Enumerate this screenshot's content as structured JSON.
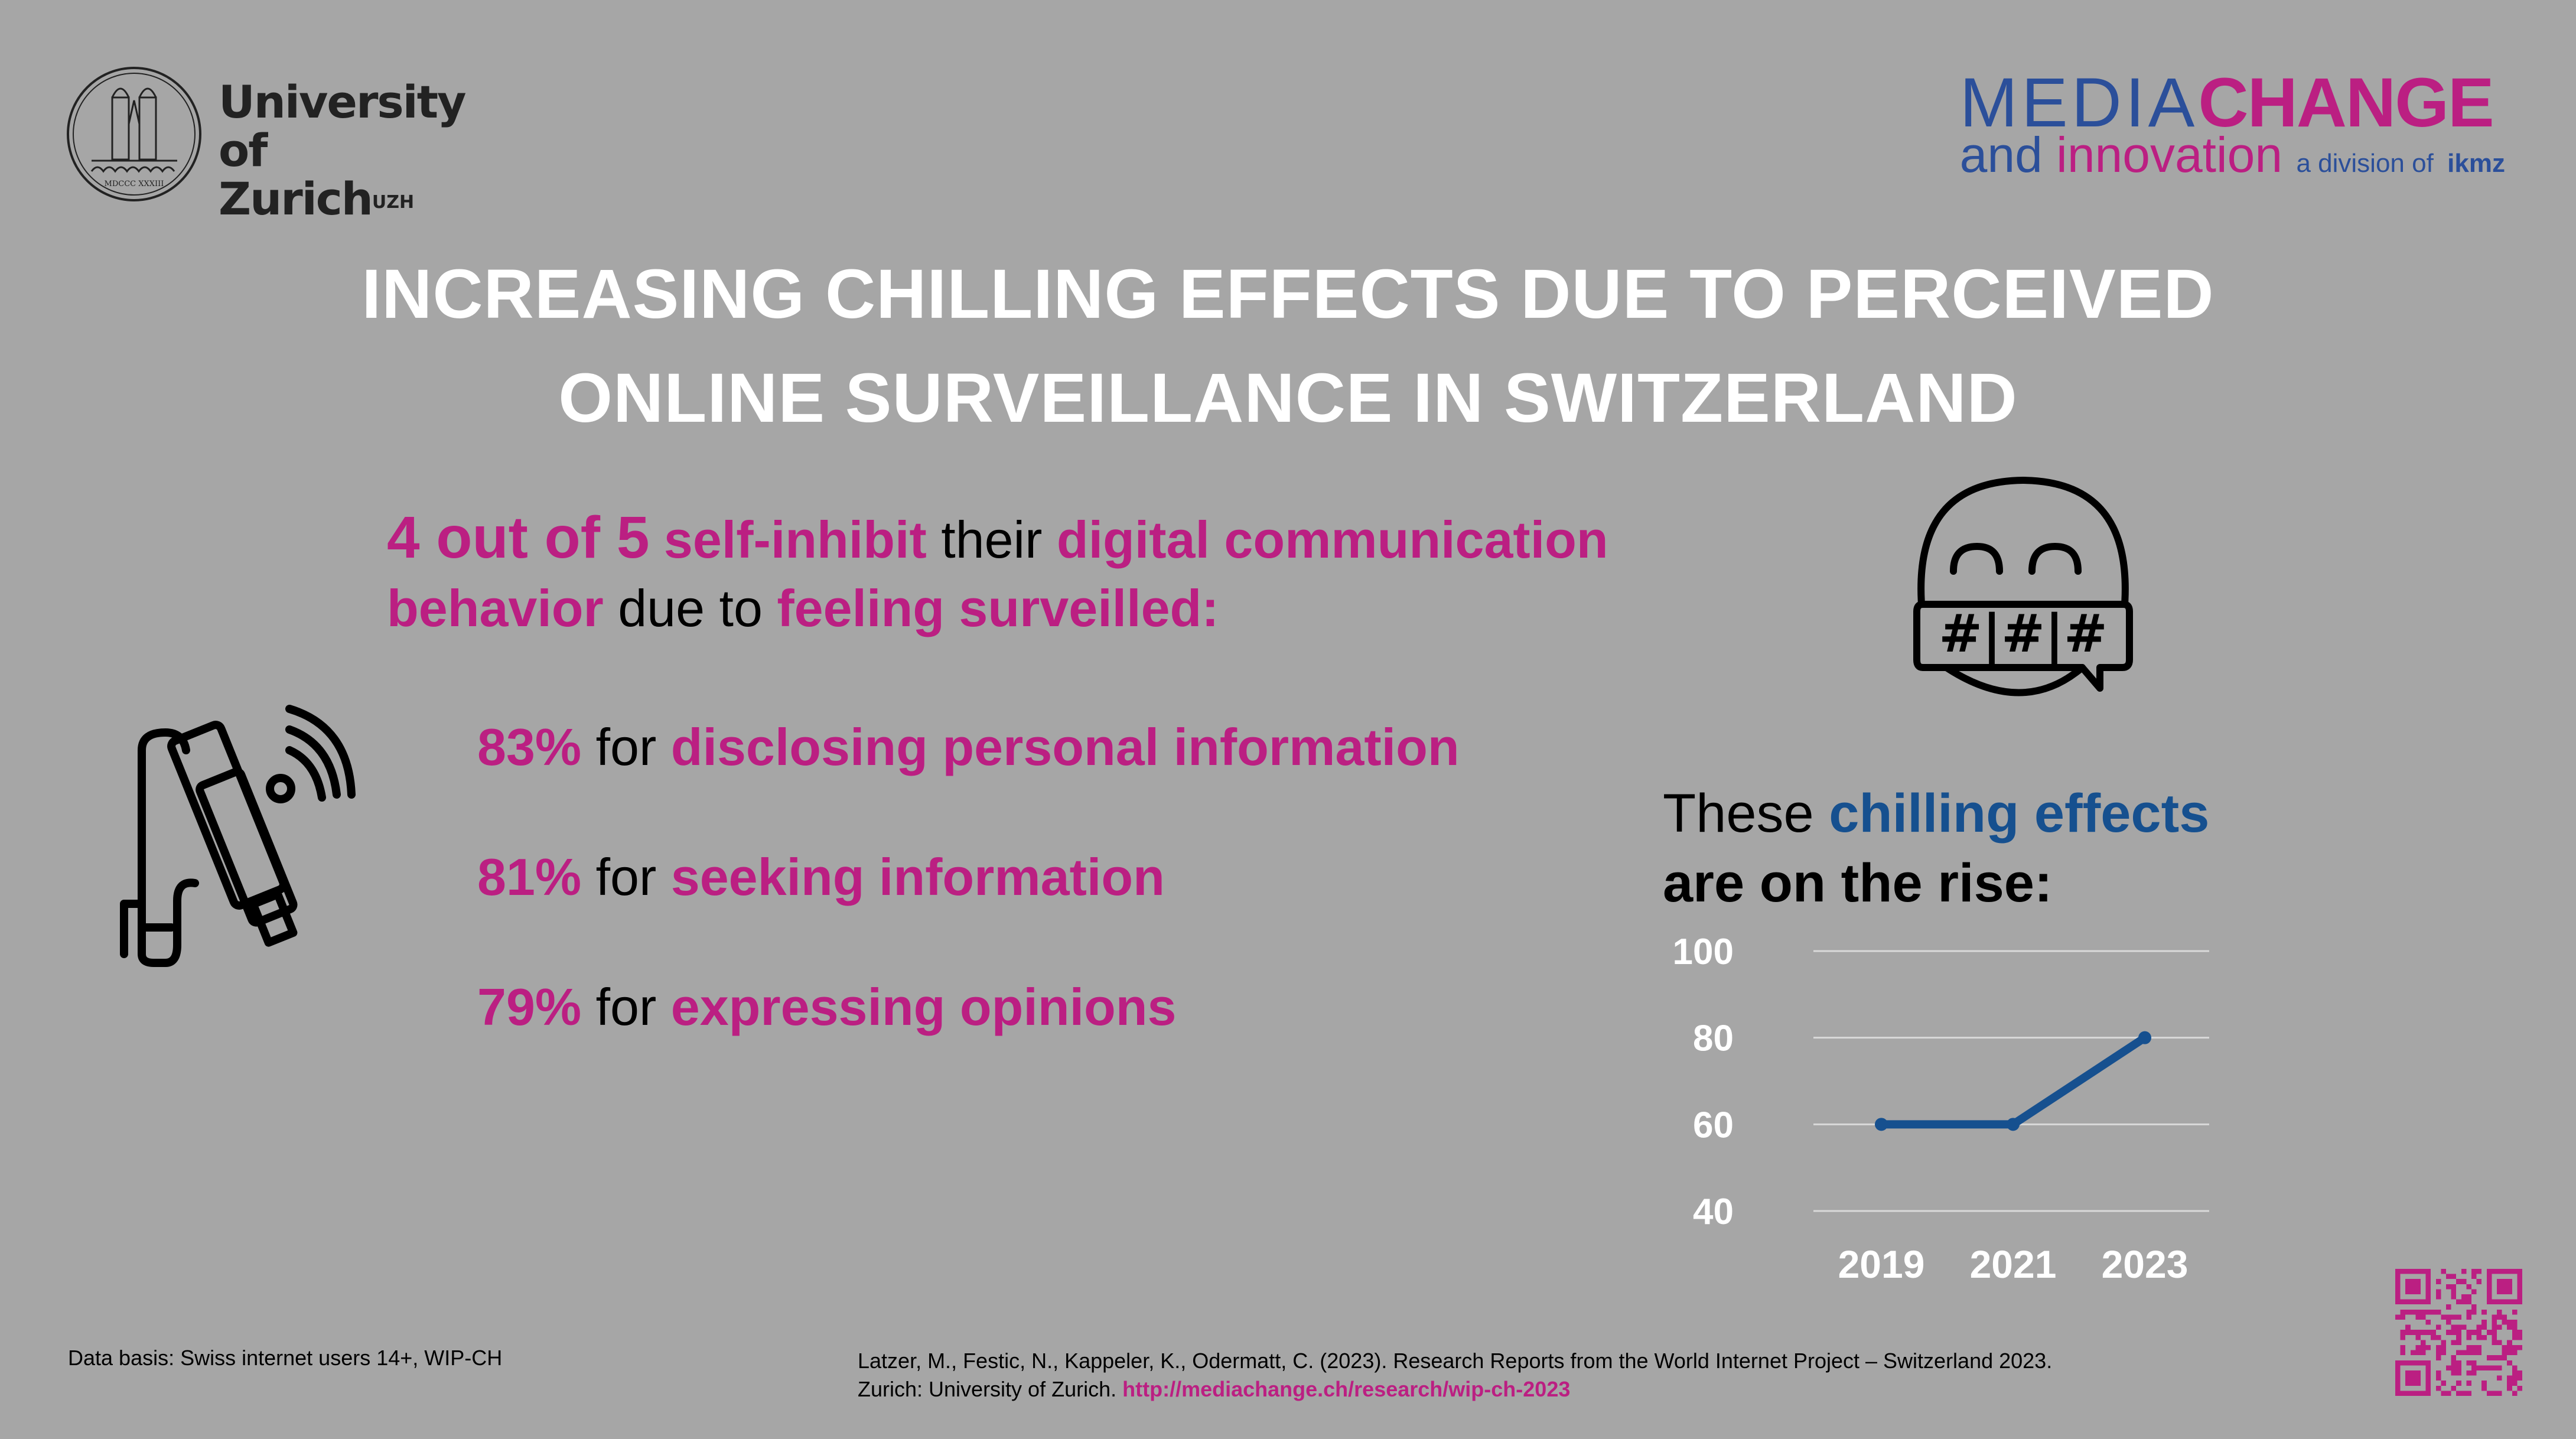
{
  "colors": {
    "background": "#a6a6a6",
    "magenta": "#bb1f82",
    "blue": "#16508f",
    "logo_blue": "#2b4f9a",
    "white": "#ffffff",
    "black": "#000000"
  },
  "logos": {
    "uzh": {
      "line1": "University of",
      "line2": "Zurich",
      "superscript": "UZH",
      "seal_icon": "university-seal-icon"
    },
    "mediachange": {
      "media": "MEDIA",
      "change": "CHANGE",
      "and": "and",
      "innovation": "innovation",
      "division": "a division of",
      "ikmz": "ikmz"
    }
  },
  "title": {
    "line1": "INCREASING CHILLING EFFECTS DUE TO PERCEIVED",
    "line2": "ONLINE SURVEILLANCE IN SWITZERLAND"
  },
  "headline": {
    "count": "4 out of 5",
    "verb": "self-inhibit",
    "their": "their",
    "object": "digital communication",
    "behavior": "behavior",
    "due_to": "due to",
    "reason": "feeling surveilled:"
  },
  "stats": [
    {
      "percent": "83%",
      "for": "for",
      "label": "disclosing personal information",
      "value": 83
    },
    {
      "percent": "81%",
      "for": "for",
      "label": "seeking information",
      "value": 81
    },
    {
      "percent": "79%",
      "for": "for",
      "label": "expressing opinions",
      "value": 79
    }
  ],
  "icons": {
    "camera": "surveillance-camera-icon",
    "emoji": "censored-face-icon",
    "emoji_text": "#|#|#"
  },
  "rise": {
    "these": "These",
    "highlight": "chilling effects",
    "line2": "are on the rise:"
  },
  "chart_data": {
    "type": "line",
    "title": "",
    "xlabel": "",
    "ylabel": "",
    "categories": [
      "2019",
      "2021",
      "2023"
    ],
    "series": [
      {
        "name": "Chilling effects (%)",
        "values": [
          60,
          60,
          80
        ],
        "color": "#16508f"
      }
    ],
    "yticks": [
      40,
      60,
      80,
      100
    ],
    "ylim": [
      40,
      100
    ],
    "grid": true,
    "legend": "none"
  },
  "footer": {
    "data_basis": "Data basis: Swiss internet users 14+, WIP-CH",
    "citation_line1": "Latzer, M., Festic, N., Kappeler, K., Odermatt, C. (2023). Research Reports from the World Internet Project – Switzerland 2023.",
    "citation_line2": "Zurich: University of Zurich.",
    "link": "http://mediachange.ch/research/wip-ch-2023",
    "qr_icon": "qr-code-icon"
  }
}
